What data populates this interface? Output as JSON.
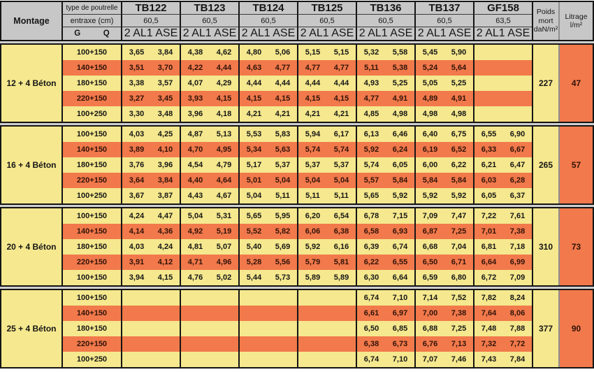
{
  "table": {
    "corner_label": "Montage",
    "row1_label": "type de poutrelle",
    "row2_label": "entraxe (cm)",
    "g_label": "G",
    "q_label": "Q",
    "col_2al": "2 AL",
    "col_1ase": "1 ASE",
    "poids_header": [
      "Poids",
      "mort",
      "daN/m²"
    ],
    "litrage_header": [
      "Litrage",
      "l/m²"
    ],
    "beams": [
      {
        "name": "TB122",
        "entraxe": "60,5"
      },
      {
        "name": "TB123",
        "entraxe": "60,5"
      },
      {
        "name": "TB124",
        "entraxe": "60,5"
      },
      {
        "name": "TB125",
        "entraxe": "60,5"
      },
      {
        "name": "TB136",
        "entraxe": "60,5"
      },
      {
        "name": "TB137",
        "entraxe": "60,5"
      },
      {
        "name": "GF158",
        "entraxe": "63,5"
      }
    ],
    "groups": [
      {
        "montage": "12 + 4 Béton",
        "poids": "227",
        "litrage": "47",
        "rows": [
          {
            "label": "100+150",
            "values": [
              [
                "3,65",
                "3,84"
              ],
              [
                "4,38",
                "4,62"
              ],
              [
                "4,80",
                "5,06"
              ],
              [
                "5,15",
                "5,15"
              ],
              [
                "5,32",
                "5,58"
              ],
              [
                "5,45",
                "5,90"
              ],
              [
                "",
                ""
              ]
            ]
          },
          {
            "label": "140+150",
            "values": [
              [
                "3,51",
                "3,70"
              ],
              [
                "4,22",
                "4,44"
              ],
              [
                "4,63",
                "4,77"
              ],
              [
                "4,77",
                "4,77"
              ],
              [
                "5,11",
                "5,38"
              ],
              [
                "5,24",
                "5,64"
              ],
              [
                "",
                ""
              ]
            ]
          },
          {
            "label": "180+150",
            "values": [
              [
                "3,38",
                "3,57"
              ],
              [
                "4,07",
                "4,29"
              ],
              [
                "4,44",
                "4,44"
              ],
              [
                "4,44",
                "4,44"
              ],
              [
                "4,93",
                "5,25"
              ],
              [
                "5,05",
                "5,25"
              ],
              [
                "",
                ""
              ]
            ]
          },
          {
            "label": "220+150",
            "values": [
              [
                "3,27",
                "3,45"
              ],
              [
                "3,93",
                "4,15"
              ],
              [
                "4,15",
                "4,15"
              ],
              [
                "4,15",
                "4,15"
              ],
              [
                "4,77",
                "4,91"
              ],
              [
                "4,89",
                "4,91"
              ],
              [
                "",
                ""
              ]
            ]
          },
          {
            "label": "100+250",
            "values": [
              [
                "3,30",
                "3,48"
              ],
              [
                "3,96",
                "4,18"
              ],
              [
                "4,21",
                "4,21"
              ],
              [
                "4,21",
                "4,21"
              ],
              [
                "4,85",
                "4,98"
              ],
              [
                "4,98",
                "4,98"
              ],
              [
                "",
                ""
              ]
            ]
          }
        ]
      },
      {
        "montage": "16 + 4 Béton",
        "poids": "265",
        "litrage": "57",
        "rows": [
          {
            "label": "100+150",
            "values": [
              [
                "4,03",
                "4,25"
              ],
              [
                "4,87",
                "5,13"
              ],
              [
                "5,53",
                "5,83"
              ],
              [
                "5,94",
                "6,17"
              ],
              [
                "6,13",
                "6,46"
              ],
              [
                "6,40",
                "6,75"
              ],
              [
                "6,55",
                "6,90"
              ]
            ]
          },
          {
            "label": "140+150",
            "values": [
              [
                "3,89",
                "4,10"
              ],
              [
                "4,70",
                "4,95"
              ],
              [
                "5,34",
                "5,63"
              ],
              [
                "5,74",
                "5,74"
              ],
              [
                "5,92",
                "6,24"
              ],
              [
                "6,19",
                "6,52"
              ],
              [
                "6,33",
                "6,67"
              ]
            ]
          },
          {
            "label": "180+150",
            "values": [
              [
                "3,76",
                "3,96"
              ],
              [
                "4,54",
                "4,79"
              ],
              [
                "5,17",
                "5,37"
              ],
              [
                "5,37",
                "5,37"
              ],
              [
                "5,74",
                "6,05"
              ],
              [
                "6,00",
                "6,22"
              ],
              [
                "6,21",
                "6,47"
              ]
            ]
          },
          {
            "label": "220+150",
            "values": [
              [
                "3,64",
                "3,84"
              ],
              [
                "4,40",
                "4,64"
              ],
              [
                "5,01",
                "5,04"
              ],
              [
                "5,04",
                "5,04"
              ],
              [
                "5,57",
                "5,84"
              ],
              [
                "5,84",
                "5,84"
              ],
              [
                "6,03",
                "6,28"
              ]
            ]
          },
          {
            "label": "100+250",
            "values": [
              [
                "3,67",
                "3,87"
              ],
              [
                "4,43",
                "4,67"
              ],
              [
                "5,04",
                "5,11"
              ],
              [
                "5,11",
                "5,11"
              ],
              [
                "5,65",
                "5,92"
              ],
              [
                "5,92",
                "5,92"
              ],
              [
                "6,05",
                "6,37"
              ]
            ]
          }
        ]
      },
      {
        "montage": "20 + 4 Béton",
        "poids": "310",
        "litrage": "73",
        "rows": [
          {
            "label": "100+150",
            "values": [
              [
                "4,24",
                "4,47"
              ],
              [
                "5,04",
                "5,31"
              ],
              [
                "5,65",
                "5,95"
              ],
              [
                "6,20",
                "6,54"
              ],
              [
                "6,78",
                "7,15"
              ],
              [
                "7,09",
                "7,47"
              ],
              [
                "7,22",
                "7,61"
              ]
            ]
          },
          {
            "label": "140+150",
            "values": [
              [
                "4,14",
                "4,36"
              ],
              [
                "4,92",
                "5,19"
              ],
              [
                "5,52",
                "5,82"
              ],
              [
                "6,06",
                "6,38"
              ],
              [
                "6,58",
                "6,93"
              ],
              [
                "6,87",
                "7,25"
              ],
              [
                "7,01",
                "7,38"
              ]
            ]
          },
          {
            "label": "180+150",
            "values": [
              [
                "4,03",
                "4,24"
              ],
              [
                "4,81",
                "5,07"
              ],
              [
                "5,40",
                "5,69"
              ],
              [
                "5,92",
                "6,16"
              ],
              [
                "6,39",
                "6,74"
              ],
              [
                "6,68",
                "7,04"
              ],
              [
                "6,81",
                "7,18"
              ]
            ]
          },
          {
            "label": "220+150",
            "values": [
              [
                "3,91",
                "4,12"
              ],
              [
                "4,71",
                "4,96"
              ],
              [
                "5,28",
                "5,56"
              ],
              [
                "5,79",
                "5,81"
              ],
              [
                "6,22",
                "6,55"
              ],
              [
                "6,50",
                "6,71"
              ],
              [
                "6,64",
                "6,99"
              ]
            ]
          },
          {
            "label": "100+150",
            "values": [
              [
                "3,94",
                "4,15"
              ],
              [
                "4,76",
                "5,02"
              ],
              [
                "5,44",
                "5,73"
              ],
              [
                "5,89",
                "5,89"
              ],
              [
                "6,30",
                "6,64"
              ],
              [
                "6,59",
                "6,80"
              ],
              [
                "6,72",
                "7,09"
              ]
            ]
          }
        ]
      },
      {
        "montage": "25 + 4 Béton",
        "poids": "377",
        "litrage": "90",
        "rows": [
          {
            "label": "100+150",
            "values": [
              [
                "",
                ""
              ],
              [
                "",
                ""
              ],
              [
                "",
                ""
              ],
              [
                "",
                ""
              ],
              [
                "6,74",
                "7,10"
              ],
              [
                "7,14",
                "7,52"
              ],
              [
                "7,82",
                "8,24"
              ]
            ]
          },
          {
            "label": "140+150",
            "values": [
              [
                "",
                ""
              ],
              [
                "",
                ""
              ],
              [
                "",
                ""
              ],
              [
                "",
                ""
              ],
              [
                "6,61",
                "6,97"
              ],
              [
                "7,00",
                "7,38"
              ],
              [
                "7,64",
                "8,06"
              ]
            ]
          },
          {
            "label": "180+150",
            "values": [
              [
                "",
                ""
              ],
              [
                "",
                ""
              ],
              [
                "",
                ""
              ],
              [
                "",
                ""
              ],
              [
                "6,50",
                "6,85"
              ],
              [
                "6,88",
                "7,25"
              ],
              [
                "7,48",
                "7,88"
              ]
            ]
          },
          {
            "label": "220+150",
            "values": [
              [
                "",
                ""
              ],
              [
                "",
                ""
              ],
              [
                "",
                ""
              ],
              [
                "",
                ""
              ],
              [
                "6,38",
                "6,73"
              ],
              [
                "6,76",
                "7,13"
              ],
              [
                "7,32",
                "7,72"
              ]
            ]
          },
          {
            "label": "100+250",
            "values": [
              [
                "",
                ""
              ],
              [
                "",
                ""
              ],
              [
                "",
                ""
              ],
              [
                "",
                ""
              ],
              [
                "6,74",
                "7,10"
              ],
              [
                "7,07",
                "7,46"
              ],
              [
                "7,43",
                "7,84"
              ]
            ]
          }
        ]
      }
    ]
  },
  "colors": {
    "row_yellow": "#f5e88e",
    "row_orange": "#f2794b",
    "header_gray": "#c7c7c7",
    "border_black": "#151515",
    "gap_gray": "#cfcfcf"
  }
}
